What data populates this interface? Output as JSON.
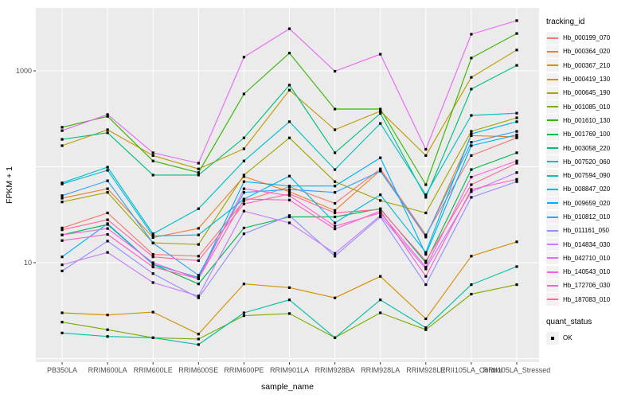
{
  "figure": {
    "background": "#FFFFFF",
    "panel_bg": "#EBEBEB",
    "grid_color": "#FFFFFF",
    "axis_text_color": "#4D4D4D",
    "tick_color": "#333333",
    "point_color": "#000000",
    "legend_key_bg": "#F2F2F2"
  },
  "chart_data": {
    "type": "line",
    "title": "",
    "xlabel": "sample_name",
    "ylabel": "FPKM + 1",
    "y_scale": "log10",
    "ylim": [
      0.9,
      4700
    ],
    "y_ticks": [
      10,
      1000
    ],
    "y_tick_labels": [
      "10",
      "1000"
    ],
    "grid_values": [
      1,
      10,
      100,
      1000
    ],
    "grid_on": true,
    "legend_position": "right",
    "categories": [
      "PB350LA",
      "RRIM600LA",
      "RRIM600LE",
      "RRIM600SE",
      "RRIM600PE",
      "RRIM901LA",
      "RRIM928BA",
      "RRIM928LA",
      "RRIM928LE",
      "RRII105LA_Control",
      "RRII105LA_Stressed"
    ],
    "series": [
      {
        "name": "Hb_000199_070",
        "color": "#F8766D",
        "values": [
          23,
          33,
          12.2,
          11.7,
          44,
          62,
          41.5,
          95,
          19.5,
          131,
          200
        ]
      },
      {
        "name": "Hb_000364_020",
        "color": "#EA8331",
        "values": [
          47,
          59,
          18.3,
          22.8,
          79,
          55,
          35,
          92,
          18.5,
          211,
          205
        ]
      },
      {
        "name": "Hb_000367_210",
        "color": "#D89000",
        "values": [
          3.0,
          2.85,
          3.05,
          1.8,
          6.0,
          5.5,
          4.3,
          7.2,
          2.6,
          11.7,
          16.5
        ]
      },
      {
        "name": "Hb_000419_130",
        "color": "#C09B00",
        "values": [
          166,
          243,
          131,
          95,
          154,
          630,
          243,
          380,
          131,
          855,
          1650
        ]
      },
      {
        "name": "Hb_000645_190",
        "color": "#A3A500",
        "values": [
          43,
          54,
          16.1,
          15.5,
          82,
          200,
          70,
          44.5,
          33,
          234,
          324
        ]
      },
      {
        "name": "Hb_001085_010",
        "color": "#7CAE00",
        "values": [
          2.4,
          2.0,
          1.65,
          1.6,
          2.8,
          2.95,
          1.65,
          3.0,
          2.0,
          4.7,
          5.9
        ]
      },
      {
        "name": "Hb_001610_130",
        "color": "#39B600",
        "values": [
          258,
          335,
          115,
          87,
          575,
          1530,
          400,
          400,
          65,
          1360,
          2450
        ]
      },
      {
        "name": "Hb_001769_100",
        "color": "#00BB4E",
        "values": [
          19.5,
          25,
          9.6,
          6.0,
          23,
          30,
          30,
          36.5,
          10,
          93.5,
          140
        ]
      },
      {
        "name": "Hb_003058_220",
        "color": "#00BF7D",
        "values": [
          193,
          226,
          82,
          82,
          200,
          710,
          140,
          360,
          48,
          645,
          1140
        ]
      },
      {
        "name": "Hb_007520_060",
        "color": "#00C1A3",
        "values": [
          1.85,
          1.7,
          1.65,
          1.4,
          3.0,
          4.1,
          1.65,
          4.1,
          2.1,
          5.9,
          9.1
        ]
      },
      {
        "name": "Hb_007594_090",
        "color": "#00BFC4",
        "values": [
          68,
          99,
          20,
          36.5,
          115,
          295,
          93.5,
          283,
          51,
          343,
          362
        ]
      },
      {
        "name": "Hb_008847_020",
        "color": "#00BAE0",
        "values": [
          66,
          92,
          19,
          19.5,
          46,
          80,
          26,
          51,
          12.8,
          220,
          295
        ]
      },
      {
        "name": "Hb_009659_020",
        "color": "#00B0F6",
        "values": [
          11.5,
          25.5,
          9.6,
          7.0,
          70,
          63,
          63,
          124,
          12.2,
          166,
          215
        ]
      },
      {
        "name": "Hb_010812_010",
        "color": "#35A2FF",
        "values": [
          50,
          71.5,
          16,
          7.4,
          54,
          58,
          54,
          90,
          19,
          180,
          234
        ]
      },
      {
        "name": "Hb_011161_050",
        "color": "#9590FF",
        "values": [
          8.2,
          16.8,
          7.7,
          4.3,
          20,
          31,
          11.7,
          30,
          5.9,
          48,
          70
        ]
      },
      {
        "name": "Hb_014834_030",
        "color": "#C77CFF",
        "values": [
          9.5,
          12.8,
          6.2,
          4.5,
          34.5,
          26,
          12.5,
          31,
          8.6,
          55,
          87
        ]
      },
      {
        "name": "Hb_042710_010",
        "color": "#E76BF3",
        "values": [
          238,
          350,
          140,
          109,
          1390,
          2750,
          990,
          1490,
          152,
          2410,
          3340
        ]
      },
      {
        "name": "Hb_140543_010",
        "color": "#FA62DB",
        "values": [
          19.5,
          22.7,
          10,
          6.8,
          59,
          50,
          24,
          33,
          9.0,
          78,
          115
        ]
      },
      {
        "name": "Hb_172706_030",
        "color": "#FF61C3",
        "values": [
          17,
          19.7,
          9.0,
          6.8,
          46,
          45,
          22.5,
          34.5,
          7.2,
          58,
          74
        ]
      },
      {
        "name": "Hb_187083_010",
        "color": "#FF689F",
        "values": [
          22,
          28,
          11.5,
          10.5,
          41,
          52,
          33,
          36,
          10.4,
          65,
          109
        ]
      }
    ],
    "legend": {
      "color_title": "tracking_id",
      "shape_title": "quant_status",
      "shape_items": [
        {
          "label": "OK",
          "shape": "filled-square",
          "color": "#000000"
        }
      ]
    }
  }
}
